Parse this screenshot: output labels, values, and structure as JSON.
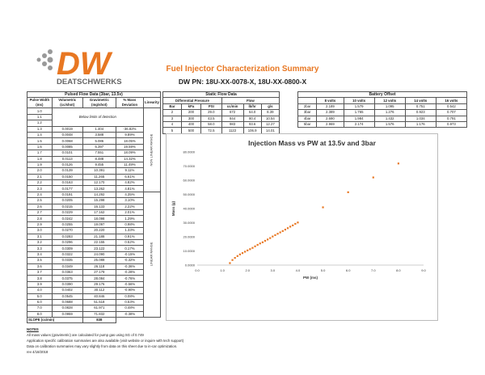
{
  "logo": {
    "text": "DW",
    "subtext": "DEATSCHWERKS",
    "color": "#e87722"
  },
  "title": "Fuel Injector Characterization Summary",
  "part_number": "DW PN: 18U-XX-0078-X, 18U-XX-0800-X",
  "pulsed": {
    "title": "Pulsed Flow Data (3bar, 13.5v)",
    "headers": [
      "Pulse Width (ms)",
      "Volumetric (cc/shot)",
      "Gravimetric (mg/shot)",
      "% Mass Deviation",
      "Linearity"
    ],
    "below_limits": "Below limits of detection",
    "nonlinear": "NON LINEAR RANGE",
    "linear": "LINEAR RANGE",
    "below_rows": [
      "1.0",
      "1.1",
      "1.2"
    ],
    "rows": [
      [
        "1.3",
        "0.0019",
        "1.404",
        "-36.82%"
      ],
      [
        "1.4",
        "0.0048",
        "3.588",
        "9.89%"
      ],
      [
        "1.5",
        "0.0068",
        "5.086",
        "18.05%"
      ],
      [
        "1.6",
        "0.0085",
        "6.397",
        "19.59%"
      ],
      [
        "1.7",
        "0.0101",
        "7.551",
        "18.09%"
      ],
      [
        "1.8",
        "0.0113",
        "8.488",
        "14.32%"
      ],
      [
        "1.9",
        "0.0126",
        "9.455",
        "11.49%"
      ],
      [
        "2.0",
        "0.0139",
        "10.391",
        "9.11%"
      ],
      [
        "2.1",
        "0.0150",
        "11.265",
        "6.61%"
      ],
      [
        "2.2",
        "0.0163",
        "12.170",
        "4.82%"
      ],
      [
        "2.3",
        "0.0177",
        "13.262",
        "4.81%"
      ],
      [
        "2.4",
        "0.0191",
        "14.292",
        "4.35%"
      ],
      [
        "2.5",
        "0.0205",
        "15.298",
        "3.10%"
      ],
      [
        "2.6",
        "0.0215",
        "16.133",
        "2.22%"
      ],
      [
        "2.7",
        "0.0229",
        "17.162",
        "2.01%"
      ],
      [
        "2.8",
        "0.0242",
        "18.098",
        "1.29%"
      ],
      [
        "2.9",
        "0.0255",
        "19.097",
        "0.98%"
      ],
      [
        "3.0",
        "0.0270",
        "20.220",
        "1.33%"
      ],
      [
        "3.1",
        "0.0283",
        "21.188",
        "0.91%"
      ],
      [
        "3.2",
        "0.0296",
        "22.155",
        "0.52%"
      ],
      [
        "3.3",
        "0.0309",
        "23.122",
        "0.17%"
      ],
      [
        "3.4",
        "0.0322",
        "24.090",
        "-0.15%"
      ],
      [
        "3.5",
        "0.0335",
        "25.088",
        "-0.32%"
      ],
      [
        "3.6",
        "0.0349",
        "26.118",
        "-0.36%"
      ],
      [
        "3.7",
        "0.0363",
        "27.179",
        "-0.28%"
      ],
      [
        "3.8",
        "0.0375",
        "28.084",
        "-0.76%"
      ],
      [
        "3.9",
        "0.0390",
        "29.176",
        "-0.56%"
      ],
      [
        "4.0",
        "0.0402",
        "30.112",
        "-0.90%"
      ],
      [
        "5.0",
        "0.0545",
        "40.846",
        "0.08%"
      ],
      [
        "6.0",
        "0.0688",
        "51.518",
        "0.53%"
      ],
      [
        "7.0",
        "0.0828",
        "61.971",
        "0.48%"
      ],
      [
        "8.0",
        "0.0959",
        "71.832",
        "-0.38%"
      ]
    ],
    "slope_label": "SLOPE (cc/min)",
    "slope_value": "838"
  },
  "static": {
    "title": "Static Flow Data",
    "group1": "Differential Pressure",
    "group2": "Flow",
    "headers": [
      "Bar",
      "kPa",
      "PSI",
      "cc/min",
      "lb/hr",
      "g/s"
    ],
    "rows": [
      [
        "2",
        "200",
        "29.0",
        "672",
        "64.0",
        "8.39"
      ],
      [
        "3",
        "300",
        "43.5",
        "844",
        "80.4",
        "10.54"
      ],
      [
        "4",
        "400",
        "58.0",
        "983",
        "93.6",
        "12.27"
      ],
      [
        "5",
        "500",
        "72.5",
        "1122",
        "106.9",
        "14.01"
      ]
    ]
  },
  "battery": {
    "title": "Battery Offset",
    "headers": [
      "",
      "8 volts",
      "10 volts",
      "12 volts",
      "14 volts",
      "16 volts"
    ],
    "rows": [
      [
        "2bar",
        "2.189",
        "1.579",
        "1.095",
        "0.751",
        "0.542"
      ],
      [
        "3bar",
        "2.389",
        "1.765",
        "1.276",
        "0.923",
        "0.707"
      ],
      [
        "4bar",
        "2.690",
        "1.984",
        "1.432",
        "1.034",
        "0.791"
      ],
      [
        "5bar",
        "2.969",
        "2.174",
        "1.576",
        "1.176",
        "0.973"
      ]
    ]
  },
  "notes": {
    "heading": "NOTES",
    "lines": [
      "All mass values (gravimetric) are calculated for pump gas using SG of 0.749",
      "Application specific calibration summaries are also available (visit website or inquire with tech support)",
      "Data on calibration summaries may vary slightly from data on this sheet due to in-car optimization.",
      "rev 4/18/2018"
    ]
  },
  "chart_data": {
    "type": "scatter",
    "title": "Injection Mass vs PW at 13.5v and 3bar",
    "xlabel": "PW (ms)",
    "ylabel": "Mass (g)",
    "xlim": [
      0,
      9
    ],
    "ylim": [
      0,
      80
    ],
    "point_color": "#e87722",
    "grid": false,
    "xticks": [
      "0.0",
      "1.0",
      "2.0",
      "3.0",
      "4.0",
      "5.0",
      "6.0",
      "7.0",
      "8.0",
      "9.0"
    ],
    "yticks": [
      "0.0000",
      "10.0000",
      "20.0000",
      "30.0000",
      "40.0000",
      "50.0000",
      "60.0000",
      "70.0000",
      "80.0000"
    ],
    "x": [
      1.3,
      1.4,
      1.5,
      1.6,
      1.7,
      1.8,
      1.9,
      2.0,
      2.1,
      2.2,
      2.3,
      2.4,
      2.5,
      2.6,
      2.7,
      2.8,
      2.9,
      3.0,
      3.1,
      3.2,
      3.3,
      3.4,
      3.5,
      3.6,
      3.7,
      3.8,
      3.9,
      4.0,
      5.0,
      6.0,
      7.0,
      8.0
    ],
    "y": [
      1.404,
      3.588,
      5.086,
      6.397,
      7.551,
      8.488,
      9.455,
      10.391,
      11.265,
      12.17,
      13.262,
      14.292,
      15.298,
      16.133,
      17.162,
      18.098,
      19.097,
      20.22,
      21.188,
      22.155,
      23.122,
      24.09,
      25.088,
      26.118,
      27.179,
      28.084,
      29.176,
      30.112,
      40.846,
      51.518,
      61.971,
      71.832
    ]
  }
}
